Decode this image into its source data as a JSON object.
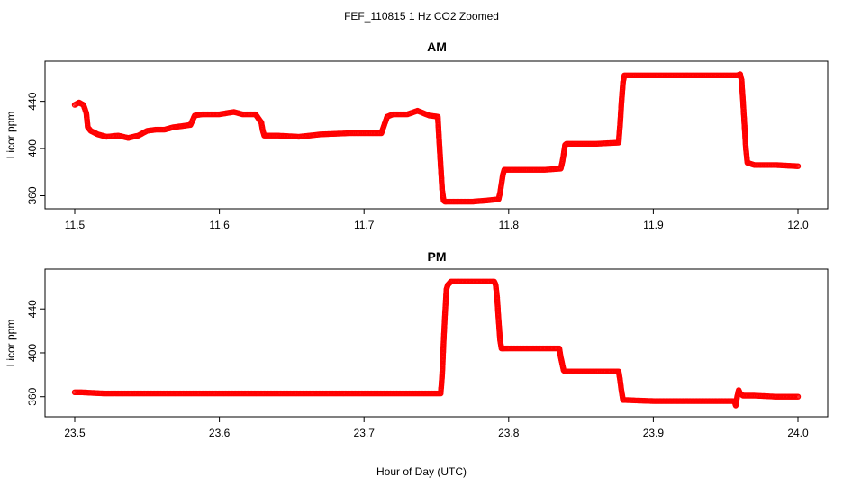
{
  "title": "FEF_110815  1 Hz CO2 Zoomed",
  "xlabel": "Hour of Day (UTC)",
  "chart_data": [
    {
      "type": "scatter",
      "title": "AM",
      "xlabel": "Hour of Day (UTC)",
      "ylabel": "Licor ppm",
      "xlim": [
        11.5,
        12.0
      ],
      "ylim": [
        352,
        471
      ],
      "xticks": [
        "11.5",
        "11.6",
        "11.7",
        "11.8",
        "11.9",
        "12.0"
      ],
      "yticks": [
        "360",
        "400",
        "440"
      ],
      "color": "#ff0000",
      "marker": "open-circle",
      "series": [
        {
          "x": [
            11.5,
            11.503,
            11.506,
            11.508,
            11.509,
            11.511,
            11.516,
            11.522,
            11.53,
            11.537,
            11.544,
            11.55,
            11.556,
            11.562,
            11.568,
            11.574,
            11.58,
            11.583,
            11.588,
            11.591,
            11.6,
            11.61,
            11.616,
            11.625,
            11.629,
            11.63,
            11.631,
            11.633,
            11.64,
            11.655,
            11.67,
            11.69,
            11.705,
            11.712,
            11.714,
            11.716,
            11.72,
            11.73,
            11.737,
            11.745,
            11.751,
            11.752,
            11.753,
            11.754,
            11.755,
            11.756,
            11.757,
            11.765,
            11.775,
            11.785,
            11.793,
            11.794,
            11.795,
            11.796,
            11.797,
            11.798,
            11.81,
            11.825,
            11.836,
            11.837,
            11.838,
            11.839,
            11.84,
            11.86,
            11.876,
            11.877,
            11.878,
            11.879,
            11.88,
            11.9,
            11.93,
            11.958,
            11.96,
            11.961,
            11.962,
            11.963,
            11.964,
            11.965,
            11.97,
            11.985,
            12.0
          ],
          "y": [
            437,
            439,
            437,
            430,
            418,
            415,
            412,
            410,
            411,
            409,
            411,
            415,
            416,
            416,
            418,
            419,
            420,
            428,
            429,
            429,
            429,
            431,
            429,
            429,
            422,
            415,
            411,
            411,
            411,
            410,
            412,
            413,
            413,
            413,
            420,
            427,
            429,
            429,
            432,
            428,
            427,
            405,
            385,
            365,
            356,
            355,
            355,
            355,
            355,
            356,
            357,
            362,
            370,
            378,
            382,
            382,
            382,
            382,
            383,
            388,
            395,
            403,
            404,
            404,
            405,
            420,
            440,
            456,
            462,
            462,
            462,
            462,
            463,
            458,
            440,
            420,
            400,
            388,
            386,
            386,
            385
          ]
        }
      ]
    },
    {
      "type": "scatter",
      "title": "PM",
      "xlabel": "Hour of Day (UTC)",
      "ylabel": "Licor ppm",
      "xlim": [
        23.5,
        24.0
      ],
      "ylim": [
        345,
        473
      ],
      "xticks": [
        "23.5",
        "23.6",
        "23.7",
        "23.8",
        "23.9",
        "24.0"
      ],
      "yticks": [
        "360",
        "400",
        "440"
      ],
      "color": "#ff0000",
      "marker": "open-circle",
      "series": [
        {
          "x": [
            23.5,
            23.505,
            23.52,
            23.55,
            23.6,
            23.65,
            23.7,
            23.74,
            23.753,
            23.754,
            23.755,
            23.756,
            23.757,
            23.758,
            23.76,
            23.775,
            23.79,
            23.791,
            23.792,
            23.793,
            23.794,
            23.795,
            23.796,
            23.797,
            23.8,
            23.82,
            23.835,
            23.836,
            23.837,
            23.838,
            23.839,
            23.84,
            23.86,
            23.876,
            23.877,
            23.878,
            23.879,
            23.88,
            23.9,
            23.93,
            23.956,
            23.957,
            23.958,
            23.959,
            23.96,
            23.962,
            23.97,
            23.985,
            24.0
          ],
          "y": [
            364,
            364,
            363,
            363,
            363,
            363,
            363,
            363,
            363,
            380,
            410,
            436,
            458,
            462,
            465,
            465,
            465,
            462,
            450,
            430,
            412,
            404,
            404,
            404,
            404,
            404,
            404,
            396,
            390,
            384,
            383,
            383,
            383,
            383,
            375,
            365,
            357,
            357,
            356,
            356,
            356,
            352,
            360,
            366,
            363,
            361,
            361,
            360,
            360
          ]
        }
      ]
    }
  ]
}
